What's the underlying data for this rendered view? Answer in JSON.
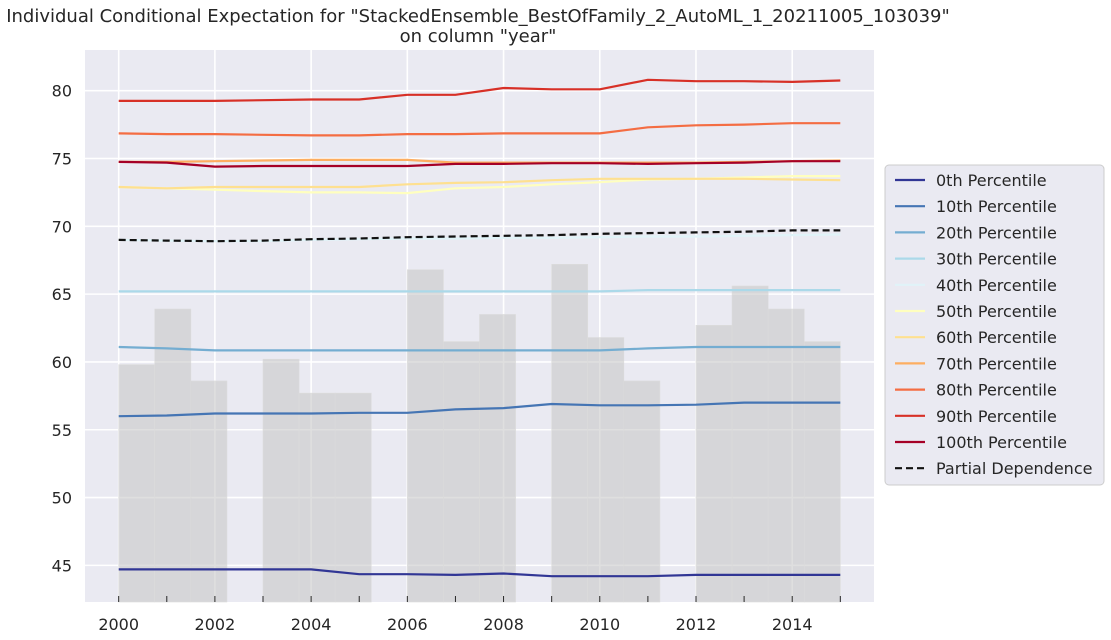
{
  "chart_data": {
    "type": "line",
    "title": "Individual Conditional Expectation for \"StackedEnsemble_BestOfFamily_2_AutoML_1_20211005_103039\"",
    "subtitle": "on column \"year\"",
    "xlabel": "",
    "ylabel": "",
    "xlim": [
      1999.3,
      2015.7
    ],
    "ylim": [
      42.3,
      83.0
    ],
    "x_ticks": [
      2000,
      2002,
      2004,
      2006,
      2008,
      2010,
      2012,
      2014
    ],
    "y_ticks": [
      45,
      50,
      55,
      60,
      65,
      70,
      75,
      80
    ],
    "grid": true,
    "legend_position": "right",
    "x": [
      2000,
      2001,
      2002,
      2003,
      2004,
      2005,
      2006,
      2007,
      2008,
      2009,
      2010,
      2011,
      2012,
      2013,
      2014,
      2015
    ],
    "histogram": {
      "color": "#c4c4c4",
      "bars": [
        {
          "x0": 2000.0,
          "x1": 2000.75,
          "top": 59.8
        },
        {
          "x0": 2000.75,
          "x1": 2001.5,
          "top": 63.9
        },
        {
          "x0": 2001.5,
          "x1": 2002.25,
          "top": 58.6
        },
        {
          "x0": 2003.0,
          "x1": 2003.75,
          "top": 60.2
        },
        {
          "x0": 2003.75,
          "x1": 2004.5,
          "top": 57.7
        },
        {
          "x0": 2004.5,
          "x1": 2005.25,
          "top": 57.7
        },
        {
          "x0": 2006.0,
          "x1": 2006.75,
          "top": 66.8
        },
        {
          "x0": 2006.75,
          "x1": 2007.5,
          "top": 61.5
        },
        {
          "x0": 2007.5,
          "x1": 2008.25,
          "top": 63.5
        },
        {
          "x0": 2009.0,
          "x1": 2009.75,
          "top": 67.2
        },
        {
          "x0": 2009.75,
          "x1": 2010.5,
          "top": 61.8
        },
        {
          "x0": 2010.5,
          "x1": 2011.25,
          "top": 58.6
        },
        {
          "x0": 2012.0,
          "x1": 2012.75,
          "top": 62.7
        },
        {
          "x0": 2012.75,
          "x1": 2013.5,
          "top": 65.6
        },
        {
          "x0": 2013.5,
          "x1": 2014.25,
          "top": 63.9
        },
        {
          "x0": 2014.25,
          "x1": 2015.0,
          "top": 61.5
        }
      ]
    },
    "series": [
      {
        "name": "0th Percentile",
        "color": "#313695",
        "dashed": false,
        "values": [
          44.7,
          44.7,
          44.7,
          44.7,
          44.7,
          44.35,
          44.35,
          44.3,
          44.4,
          44.2,
          44.2,
          44.2,
          44.3,
          44.3,
          44.3,
          44.3
        ]
      },
      {
        "name": "10th Percentile",
        "color": "#4575b4",
        "dashed": false,
        "values": [
          56.0,
          56.05,
          56.2,
          56.2,
          56.2,
          56.25,
          56.25,
          56.5,
          56.6,
          56.9,
          56.8,
          56.8,
          56.85,
          57.0,
          57.0,
          57.0
        ]
      },
      {
        "name": "20th Percentile",
        "color": "#74add1",
        "dashed": false,
        "values": [
          61.1,
          61.0,
          60.85,
          60.85,
          60.85,
          60.85,
          60.85,
          60.85,
          60.85,
          60.85,
          60.85,
          61.0,
          61.1,
          61.1,
          61.1,
          61.1
        ]
      },
      {
        "name": "30th Percentile",
        "color": "#abd9e9",
        "dashed": false,
        "values": [
          65.2,
          65.2,
          65.2,
          65.2,
          65.2,
          65.2,
          65.2,
          65.2,
          65.2,
          65.2,
          65.2,
          65.3,
          65.3,
          65.3,
          65.3,
          65.3
        ]
      },
      {
        "name": "40th Percentile",
        "color": "#e0f3f8",
        "dashed": false,
        "values": [
          69.0,
          68.95,
          68.9,
          68.9,
          69.0,
          69.05,
          69.1,
          69.1,
          69.15,
          69.15,
          69.2,
          69.25,
          69.25,
          69.3,
          69.35,
          69.4
        ]
      },
      {
        "name": "50th Percentile",
        "color": "#ffffbf",
        "dashed": false,
        "values": [
          72.9,
          72.8,
          72.7,
          72.6,
          72.5,
          72.5,
          72.45,
          72.8,
          72.9,
          73.1,
          73.25,
          73.45,
          73.5,
          73.6,
          73.7,
          73.7
        ]
      },
      {
        "name": "60th Percentile",
        "color": "#fee090",
        "dashed": false,
        "values": [
          72.9,
          72.8,
          72.9,
          72.9,
          72.9,
          72.9,
          73.1,
          73.2,
          73.25,
          73.4,
          73.5,
          73.5,
          73.5,
          73.5,
          73.45,
          73.4
        ]
      },
      {
        "name": "70th Percentile",
        "color": "#fdae61",
        "dashed": false,
        "values": [
          74.75,
          74.75,
          74.8,
          74.85,
          74.9,
          74.9,
          74.9,
          74.7,
          74.7,
          74.7,
          74.7,
          74.7,
          74.7,
          74.75,
          74.8,
          74.85
        ]
      },
      {
        "name": "80th Percentile",
        "color": "#f46d43",
        "dashed": false,
        "values": [
          76.85,
          76.8,
          76.8,
          76.75,
          76.7,
          76.7,
          76.8,
          76.8,
          76.85,
          76.85,
          76.85,
          77.3,
          77.45,
          77.5,
          77.6,
          77.6
        ]
      },
      {
        "name": "90th Percentile",
        "color": "#d73027",
        "dashed": false,
        "values": [
          79.25,
          79.25,
          79.25,
          79.3,
          79.35,
          79.35,
          79.7,
          79.7,
          80.2,
          80.1,
          80.1,
          80.8,
          80.7,
          80.7,
          80.65,
          80.75
        ]
      },
      {
        "name": "100th Percentile",
        "color": "#a50026",
        "dashed": false,
        "values": [
          74.75,
          74.7,
          74.4,
          74.45,
          74.45,
          74.45,
          74.45,
          74.6,
          74.6,
          74.65,
          74.65,
          74.6,
          74.65,
          74.7,
          74.8,
          74.8
        ]
      },
      {
        "name": "Partial Dependence",
        "color": "#111111",
        "dashed": true,
        "values": [
          69.0,
          68.95,
          68.9,
          68.95,
          69.05,
          69.1,
          69.2,
          69.25,
          69.3,
          69.35,
          69.45,
          69.5,
          69.55,
          69.6,
          69.7,
          69.7
        ]
      }
    ]
  }
}
